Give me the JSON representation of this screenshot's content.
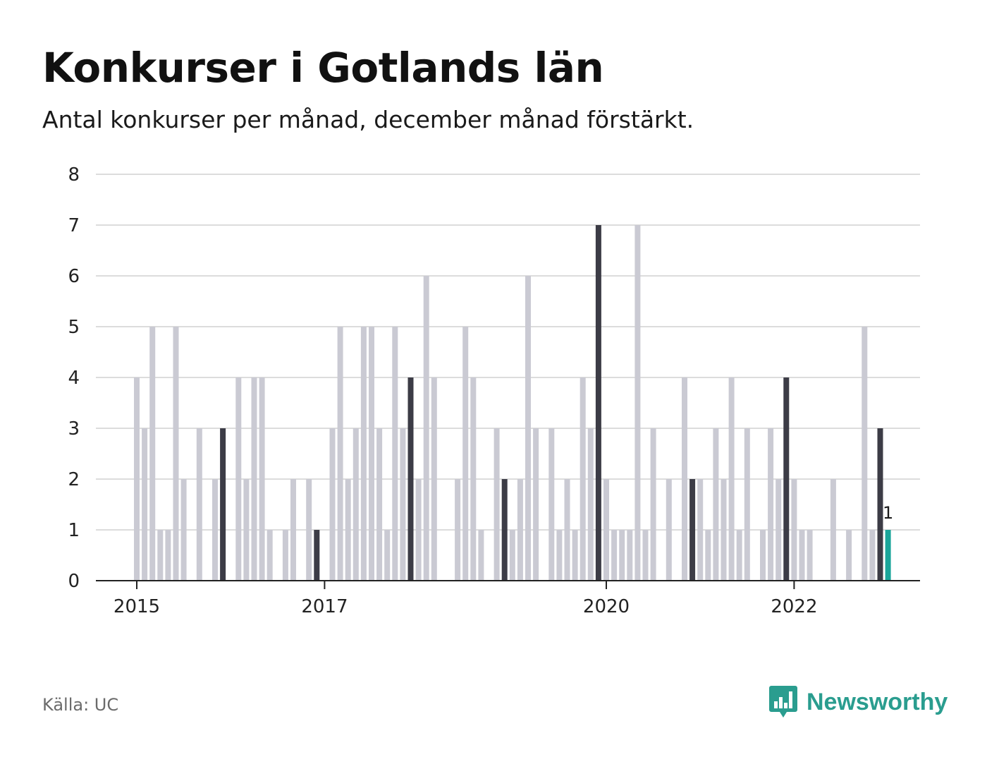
{
  "title": "Konkurser i Gotlands län",
  "subtitle": "Antal konkurser per månad, december månad förstärkt.",
  "source": "Källa: UC",
  "brand": {
    "name": "Newsworthy",
    "icon": "newsworthy-logo-icon"
  },
  "colors": {
    "bar": "#cacad3",
    "december": "#3c3c46",
    "latest": "#1aa59a",
    "grid": "#dcdcdc",
    "axis": "#222222",
    "brand": "#2a9d8f"
  },
  "chart_data": {
    "type": "bar",
    "title": "Konkurser i Gotlands län",
    "xlabel": "",
    "ylabel": "",
    "ylim": [
      0,
      8
    ],
    "yticks": [
      "0",
      "1",
      "2",
      "3",
      "4",
      "5",
      "6",
      "7",
      "8"
    ],
    "start": "2015-01",
    "xticks": [
      {
        "label": "2015",
        "index": 0
      },
      {
        "label": "2017",
        "index": 24
      },
      {
        "label": "2020",
        "index": 60
      },
      {
        "label": "2022",
        "index": 84
      }
    ],
    "values": [
      4,
      3,
      5,
      1,
      1,
      5,
      2,
      0,
      3,
      0,
      2,
      3,
      0,
      4,
      2,
      4,
      4,
      1,
      0,
      1,
      2,
      0,
      2,
      1,
      0,
      3,
      5,
      2,
      3,
      5,
      5,
      3,
      1,
      5,
      3,
      4,
      2,
      6,
      4,
      0,
      0,
      2,
      5,
      4,
      1,
      0,
      3,
      2,
      1,
      2,
      6,
      3,
      0,
      3,
      1,
      2,
      1,
      4,
      3,
      7,
      2,
      1,
      1,
      1,
      7,
      1,
      3,
      0,
      2,
      0,
      4,
      2,
      2,
      1,
      3,
      2,
      4,
      1,
      3,
      0,
      1,
      3,
      2,
      4,
      2,
      1,
      1,
      0,
      0,
      2,
      0,
      1,
      0,
      5,
      1,
      3,
      1
    ],
    "highlight": "december",
    "last_value_label": "1"
  }
}
